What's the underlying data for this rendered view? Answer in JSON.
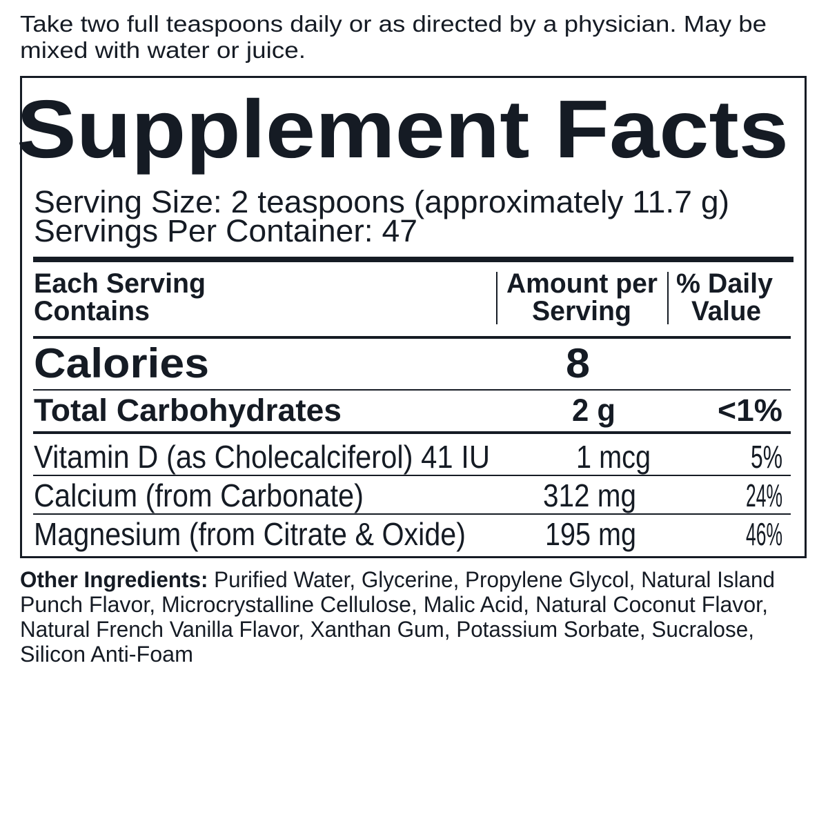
{
  "directions": {
    "line1": "Take two full teaspoons daily or as directed by a physician. May be",
    "line2": "mixed with water or juice."
  },
  "facts": {
    "title": "Supplement Facts",
    "serving_size": "Serving Size: 2 teaspoons (approximately 11.7 g)",
    "servings_per_container": "Servings Per Container: 47",
    "headers": {
      "col1_line1": "Each Serving",
      "col1_line2": "Contains",
      "col2_line1": "Amount per",
      "col2_line2": "Serving",
      "col3_line1": "% Daily",
      "col3_line2": "Value"
    },
    "calories": {
      "label": "Calories",
      "amount": "8"
    },
    "rows": [
      {
        "name": "Total Carbohydrates",
        "amount": "2 g",
        "dv": "<1%"
      },
      {
        "name": "Vitamin D (as Cholecalciferol) 41 IU",
        "amount": "1 mcg",
        "dv": "5%"
      },
      {
        "name": "Calcium (from Carbonate)",
        "amount": "312 mg",
        "dv": "24%"
      },
      {
        "name": "Magnesium (from Citrate & Oxide)",
        "amount": "195 mg",
        "dv": "46%"
      }
    ]
  },
  "other_ingredients": {
    "label": "Other Ingredients:",
    "line1": " Purified Water, Glycerine, Propylene Glycol, Natural Island",
    "line2": "Punch Flavor, Microcrystalline Cellulose, Malic Acid, Natural Coconut Flavor,",
    "line3": "Natural French Vanilla Flavor, Xanthan Gum, Potassium Sorbate, Sucralose,",
    "line4": "Silicon Anti-Foam"
  },
  "colors": {
    "text": "#151b24",
    "background": "#ffffff"
  }
}
